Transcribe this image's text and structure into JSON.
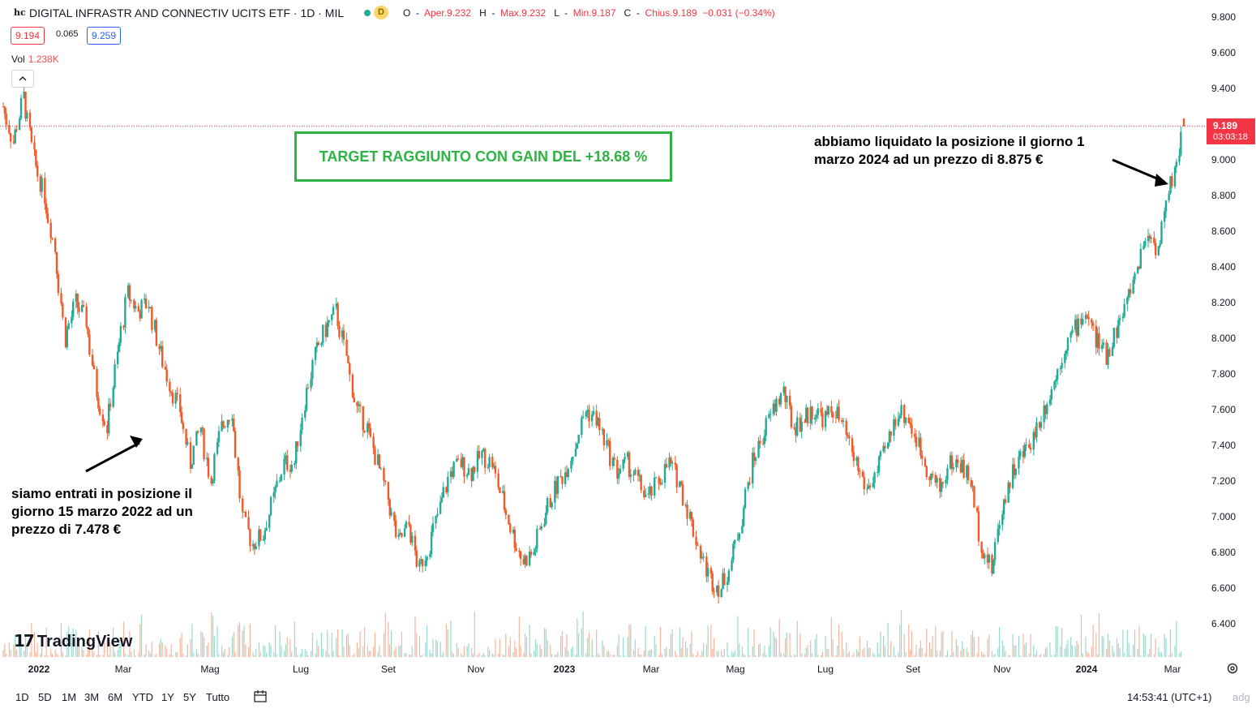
{
  "legend": {
    "symbol_glyph": "hc",
    "title": "DIGITAL INFRASTR AND CONNECTIV UCITS ETF · 1D · MIL",
    "status_dot_color": "#22ab94",
    "delay_badge": "D",
    "ohlc": {
      "o_label": "O",
      "o_value": "Aper.9.232",
      "h_label": "H",
      "h_value": "Max.9.232",
      "l_label": "L",
      "l_value": "Min.9.187",
      "c_label": "C",
      "c_value": "Chius.9.189",
      "change": "−0.031 (−0.34%)"
    },
    "bid": "9.194",
    "spread": "0.065",
    "ask": "9.259",
    "volume_label": "Vol",
    "volume_value": "1.238K",
    "collapse_icon": "chevron-up-icon"
  },
  "colors": {
    "up": "#22ab94",
    "down": "#f05a28",
    "target_green": "#2db342",
    "price_label": "#f23645"
  },
  "current_price": {
    "price": "9.189",
    "countdown": "03:03:18"
  },
  "annotations": {
    "target_text": "TARGET RAGGIUNTO CON GAIN DEL +18.68 %",
    "entry_line1": "siamo entrati in posizione il",
    "entry_line2": "giorno 15 marzo 2022 ad un",
    "entry_line3": "prezzo di 7.478 €",
    "exit_line1": "abbiamo liquidato la posizione il giorno 1",
    "exit_line2": "marzo 2024 ad un prezzo di 8.875 €"
  },
  "branding": {
    "logo_text": "TradingView",
    "logo_mark": "17"
  },
  "bottom_bar": {
    "ranges": [
      "1D",
      "5D",
      "1M",
      "3M",
      "6M",
      "YTD",
      "1Y",
      "5Y",
      "Tutto"
    ],
    "clock": "14:53:41 (UTC+1)",
    "adjust": "adg"
  },
  "chart_data": {
    "type": "candlestick",
    "interval": "1D",
    "y_ticks": [
      "9.800",
      "9.600",
      "9.400",
      "9.200",
      "9.000",
      "8.800",
      "8.600",
      "8.400",
      "8.200",
      "8.000",
      "7.800",
      "7.600",
      "7.400",
      "7.200",
      "7.000",
      "6.800",
      "6.600",
      "6.400"
    ],
    "ylim": [
      6.2,
      9.85
    ],
    "x_ticks": [
      "2022",
      "Mar",
      "Mag",
      "Lug",
      "Set",
      "Nov",
      "2023",
      "Mar",
      "Mag",
      "Lug",
      "Set",
      "Nov",
      "2024",
      "Mar"
    ],
    "x_tick_bold": [
      "2022",
      "2023",
      "2024"
    ],
    "last_close": 9.189,
    "close_path": [
      {
        "d": "2022-01-03",
        "c": 9.3
      },
      {
        "d": "2022-01-10",
        "c": 9.1
      },
      {
        "d": "2022-01-17",
        "c": 9.35
      },
      {
        "d": "2022-01-24",
        "c": 9.0
      },
      {
        "d": "2022-01-31",
        "c": 8.8
      },
      {
        "d": "2022-02-07",
        "c": 8.5
      },
      {
        "d": "2022-02-14",
        "c": 8.0
      },
      {
        "d": "2022-02-21",
        "c": 8.2
      },
      {
        "d": "2022-02-28",
        "c": 8.1
      },
      {
        "d": "2022-03-07",
        "c": 7.7
      },
      {
        "d": "2022-03-14",
        "c": 7.5
      },
      {
        "d": "2022-03-21",
        "c": 7.9
      },
      {
        "d": "2022-03-28",
        "c": 8.25
      },
      {
        "d": "2022-04-04",
        "c": 8.15
      },
      {
        "d": "2022-04-11",
        "c": 8.2
      },
      {
        "d": "2022-04-18",
        "c": 7.95
      },
      {
        "d": "2022-04-25",
        "c": 7.75
      },
      {
        "d": "2022-05-02",
        "c": 7.6
      },
      {
        "d": "2022-05-09",
        "c": 7.3
      },
      {
        "d": "2022-05-16",
        "c": 7.5
      },
      {
        "d": "2022-05-23",
        "c": 7.2
      },
      {
        "d": "2022-05-30",
        "c": 7.5
      },
      {
        "d": "2022-06-06",
        "c": 7.6
      },
      {
        "d": "2022-06-13",
        "c": 7.0
      },
      {
        "d": "2022-06-20",
        "c": 6.85
      },
      {
        "d": "2022-06-27",
        "c": 6.9
      },
      {
        "d": "2022-07-04",
        "c": 7.1
      },
      {
        "d": "2022-07-11",
        "c": 7.3
      },
      {
        "d": "2022-07-18",
        "c": 7.3
      },
      {
        "d": "2022-07-25",
        "c": 7.65
      },
      {
        "d": "2022-08-01",
        "c": 7.9
      },
      {
        "d": "2022-08-08",
        "c": 8.05
      },
      {
        "d": "2022-08-15",
        "c": 8.15
      },
      {
        "d": "2022-08-22",
        "c": 7.9
      },
      {
        "d": "2022-08-29",
        "c": 7.6
      },
      {
        "d": "2022-09-05",
        "c": 7.5
      },
      {
        "d": "2022-09-12",
        "c": 7.3
      },
      {
        "d": "2022-09-19",
        "c": 7.1
      },
      {
        "d": "2022-09-26",
        "c": 6.85
      },
      {
        "d": "2022-10-03",
        "c": 6.95
      },
      {
        "d": "2022-10-10",
        "c": 6.7
      },
      {
        "d": "2022-10-17",
        "c": 6.85
      },
      {
        "d": "2022-10-24",
        "c": 7.05
      },
      {
        "d": "2022-10-31",
        "c": 7.25
      },
      {
        "d": "2022-11-07",
        "c": 7.3
      },
      {
        "d": "2022-11-14",
        "c": 7.25
      },
      {
        "d": "2022-11-21",
        "c": 7.35
      },
      {
        "d": "2022-11-28",
        "c": 7.3
      },
      {
        "d": "2022-12-05",
        "c": 7.1
      },
      {
        "d": "2022-12-12",
        "c": 6.9
      },
      {
        "d": "2022-12-19",
        "c": 6.75
      },
      {
        "d": "2022-12-26",
        "c": 6.8
      },
      {
        "d": "2023-01-02",
        "c": 7.0
      },
      {
        "d": "2023-01-09",
        "c": 7.15
      },
      {
        "d": "2023-01-16",
        "c": 7.25
      },
      {
        "d": "2023-01-23",
        "c": 7.4
      },
      {
        "d": "2023-01-30",
        "c": 7.6
      },
      {
        "d": "2023-02-06",
        "c": 7.55
      },
      {
        "d": "2023-02-13",
        "c": 7.4
      },
      {
        "d": "2023-02-20",
        "c": 7.25
      },
      {
        "d": "2023-02-27",
        "c": 7.3
      },
      {
        "d": "2023-03-06",
        "c": 7.2
      },
      {
        "d": "2023-03-13",
        "c": 7.1
      },
      {
        "d": "2023-03-20",
        "c": 7.2
      },
      {
        "d": "2023-03-27",
        "c": 7.3
      },
      {
        "d": "2023-04-03",
        "c": 7.2
      },
      {
        "d": "2023-04-10",
        "c": 7.0
      },
      {
        "d": "2023-04-17",
        "c": 6.8
      },
      {
        "d": "2023-04-24",
        "c": 6.65
      },
      {
        "d": "2023-05-01",
        "c": 6.6
      },
      {
        "d": "2023-05-08",
        "c": 6.75
      },
      {
        "d": "2023-05-15",
        "c": 7.0
      },
      {
        "d": "2023-05-22",
        "c": 7.3
      },
      {
        "d": "2023-05-29",
        "c": 7.45
      },
      {
        "d": "2023-06-05",
        "c": 7.6
      },
      {
        "d": "2023-06-12",
        "c": 7.7
      },
      {
        "d": "2023-06-19",
        "c": 7.5
      },
      {
        "d": "2023-06-26",
        "c": 7.55
      },
      {
        "d": "2023-07-03",
        "c": 7.6
      },
      {
        "d": "2023-07-10",
        "c": 7.55
      },
      {
        "d": "2023-07-17",
        "c": 7.6
      },
      {
        "d": "2023-07-24",
        "c": 7.45
      },
      {
        "d": "2023-07-31",
        "c": 7.3
      },
      {
        "d": "2023-08-07",
        "c": 7.15
      },
      {
        "d": "2023-08-14",
        "c": 7.25
      },
      {
        "d": "2023-08-21",
        "c": 7.4
      },
      {
        "d": "2023-08-28",
        "c": 7.6
      },
      {
        "d": "2023-09-04",
        "c": 7.55
      },
      {
        "d": "2023-09-11",
        "c": 7.4
      },
      {
        "d": "2023-09-18",
        "c": 7.25
      },
      {
        "d": "2023-09-25",
        "c": 7.15
      },
      {
        "d": "2023-10-02",
        "c": 7.3
      },
      {
        "d": "2023-10-09",
        "c": 7.3
      },
      {
        "d": "2023-10-16",
        "c": 7.2
      },
      {
        "d": "2023-10-23",
        "c": 6.85
      },
      {
        "d": "2023-10-30",
        "c": 6.7
      },
      {
        "d": "2023-11-06",
        "c": 7.05
      },
      {
        "d": "2023-11-13",
        "c": 7.25
      },
      {
        "d": "2023-11-20",
        "c": 7.35
      },
      {
        "d": "2023-11-27",
        "c": 7.45
      },
      {
        "d": "2023-12-04",
        "c": 7.6
      },
      {
        "d": "2023-12-11",
        "c": 7.75
      },
      {
        "d": "2023-12-18",
        "c": 7.95
      },
      {
        "d": "2023-12-25",
        "c": 8.05
      },
      {
        "d": "2024-01-01",
        "c": 8.15
      },
      {
        "d": "2024-01-08",
        "c": 8.0
      },
      {
        "d": "2024-01-15",
        "c": 7.9
      },
      {
        "d": "2024-01-22",
        "c": 8.05
      },
      {
        "d": "2024-01-29",
        "c": 8.2
      },
      {
        "d": "2024-02-05",
        "c": 8.4
      },
      {
        "d": "2024-02-12",
        "c": 8.6
      },
      {
        "d": "2024-02-19",
        "c": 8.5
      },
      {
        "d": "2024-02-26",
        "c": 8.8
      },
      {
        "d": "2024-03-04",
        "c": 9.05
      },
      {
        "d": "2024-03-07",
        "c": 9.189
      }
    ]
  }
}
